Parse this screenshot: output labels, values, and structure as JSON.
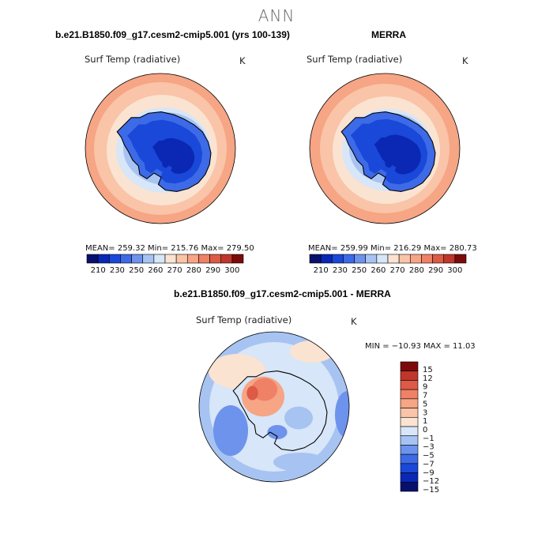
{
  "page_title": "ANN",
  "panels": [
    {
      "title": "b.e21.B1850.f09_g17.cesm2-cmip5.001 (yrs 100-139)",
      "variable": "Surf Temp (radiative)",
      "units": "K",
      "stats": "MEAN= 259.32   Min= 215.76   Max= 279.50"
    },
    {
      "title": "MERRA",
      "variable": "Surf Temp (radiative)",
      "units": "K",
      "stats": "MEAN= 259.99   Min= 216.29   Max= 280.73"
    },
    {
      "title": "b.e21.B1850.f09_g17.cesm2-cmip5.001 - MERRA",
      "variable": "Surf Temp (radiative)",
      "units": "K",
      "stats": "MIN = −10.93  MAX =  11.03"
    }
  ],
  "colors": {
    "abs_scale": [
      "#08106e",
      "#0a28b4",
      "#1a48d8",
      "#3d6ae6",
      "#6d93ec",
      "#a7c3f2",
      "#d7e6f8",
      "#fbe3d1",
      "#f9c4a8",
      "#f6a585",
      "#ee8166",
      "#dd5a46",
      "#c0352c",
      "#7c0a0a"
    ],
    "diff_scale": [
      "#08106e",
      "#0a28b4",
      "#1a48d8",
      "#3d6ae6",
      "#6d93ec",
      "#a7c3f2",
      "#d7e6f8",
      "#fbe3d1",
      "#f9c4a8",
      "#f6a585",
      "#ee8166",
      "#dd5a46",
      "#c0352c",
      "#7c0a0a"
    ]
  },
  "chart_data": [
    {
      "type": "heatmap",
      "title": "b.e21.B1850.f09_g17.cesm2-cmip5.001 (yrs 100-139)",
      "variable": "Surf Temp (radiative)",
      "units": "K",
      "projection": "south polar stereographic",
      "mean": 259.32,
      "min": 215.76,
      "max": 279.5,
      "colorbar_levels": [
        210,
        215,
        220,
        230,
        240,
        250,
        255,
        260,
        265,
        270,
        275,
        280,
        290,
        300
      ],
      "colorbar_tick_labels": [
        "210",
        "230",
        "250",
        "260",
        "270",
        "280",
        "290",
        "300"
      ]
    },
    {
      "type": "heatmap",
      "title": "MERRA",
      "variable": "Surf Temp (radiative)",
      "units": "K",
      "projection": "south polar stereographic",
      "mean": 259.99,
      "min": 216.29,
      "max": 280.73,
      "colorbar_levels": [
        210,
        215,
        220,
        230,
        240,
        250,
        255,
        260,
        265,
        270,
        275,
        280,
        290,
        300
      ],
      "colorbar_tick_labels": [
        "210",
        "230",
        "250",
        "260",
        "270",
        "280",
        "290",
        "300"
      ]
    },
    {
      "type": "heatmap",
      "title": "b.e21.B1850.f09_g17.cesm2-cmip5.001 - MERRA",
      "variable": "Surf Temp (radiative)",
      "units": "K",
      "projection": "south polar stereographic",
      "min": -10.93,
      "max": 11.03,
      "colorbar_tick_labels": [
        "15",
        "12",
        "9",
        "7",
        "5",
        "3",
        "1",
        "0",
        "−1",
        "−3",
        "−5",
        "−7",
        "−9",
        "−12",
        "−15"
      ]
    }
  ]
}
